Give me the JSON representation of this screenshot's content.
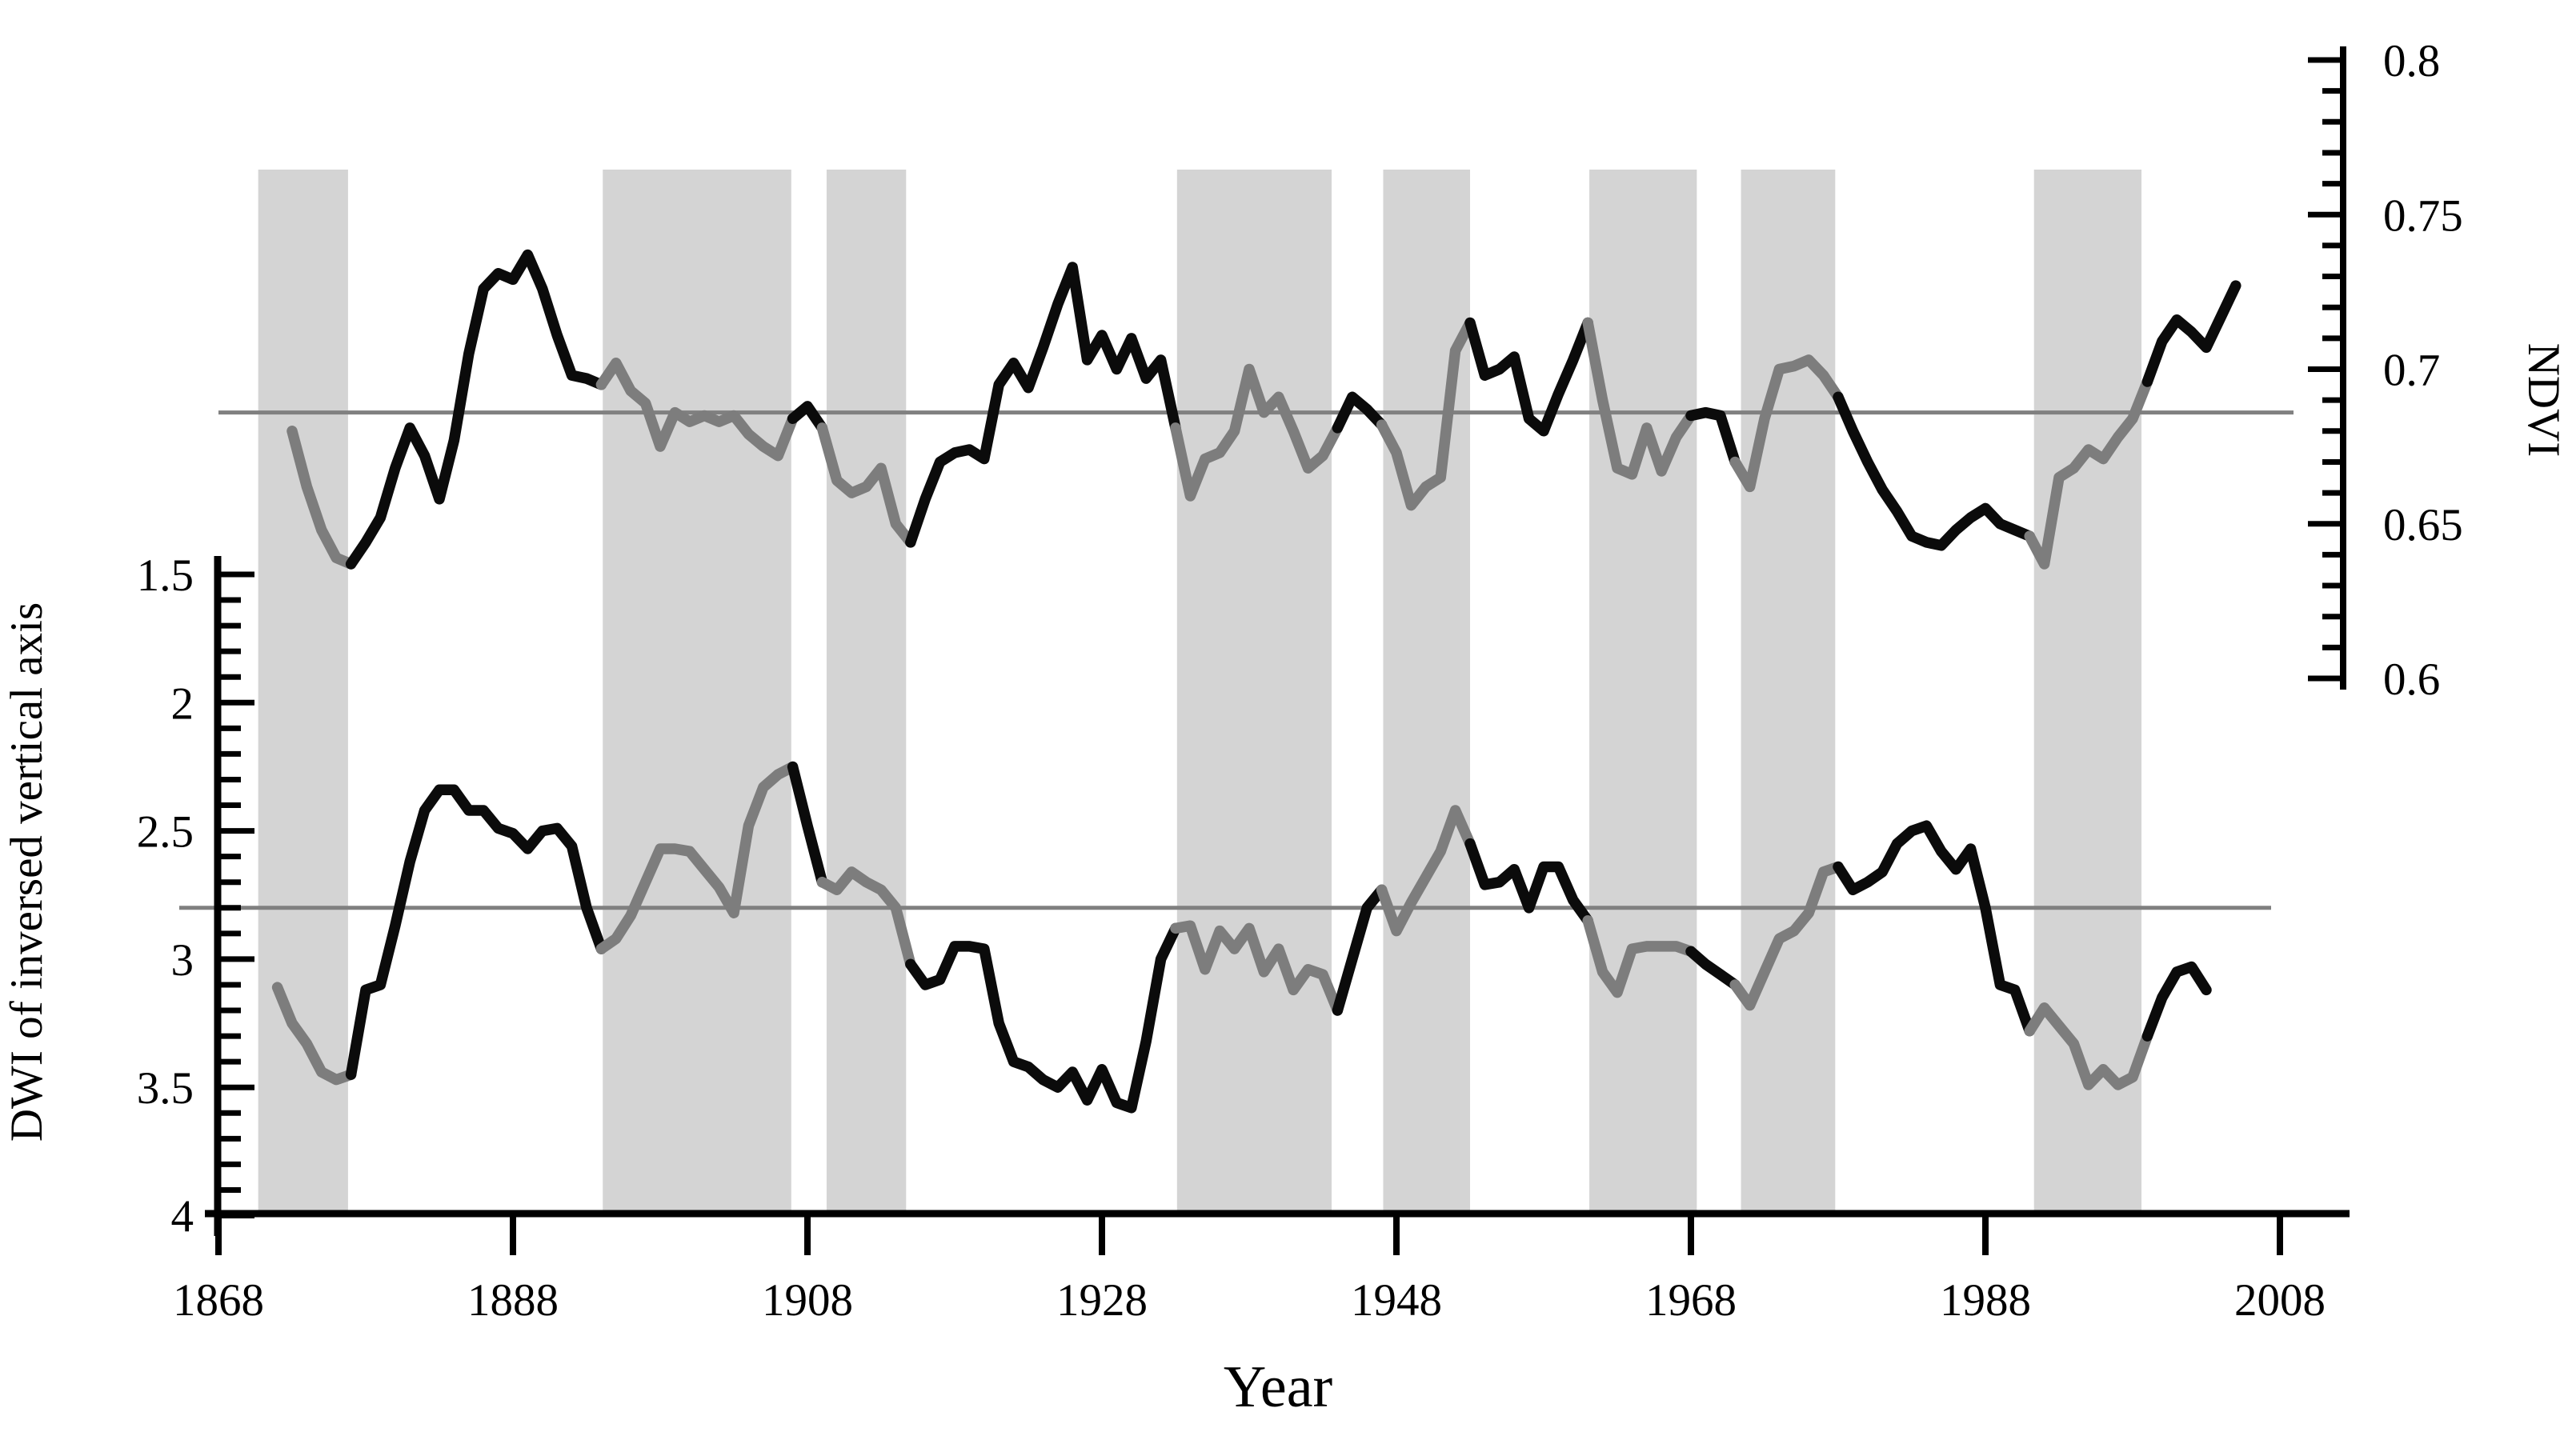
{
  "chart_data": {
    "type": "line",
    "title": "",
    "xlabel": "Year",
    "ylabel_left": "DWI of inversed vertical axis",
    "ylabel_right": "NDVI",
    "x_axis": {
      "range": [
        1868,
        2012.5
      ],
      "ticks": [
        1868,
        1888,
        1908,
        1928,
        1948,
        1968,
        1988,
        2008
      ],
      "tick_labels": [
        "1868",
        "1888",
        "1908",
        "1928",
        "1948",
        "1968",
        "1988",
        "2008"
      ]
    },
    "left_axis": {
      "label": "DWI of inversed vertical axis",
      "inverted": true,
      "range": [
        1.5,
        4
      ],
      "major_step": 0.5,
      "minor_step": 0.1,
      "major_ticks": [
        1.5,
        2,
        2.5,
        3,
        3.5,
        4
      ],
      "tick_labels": [
        "1.5",
        "2",
        "2.5",
        "3",
        "3.5",
        "4"
      ]
    },
    "right_axis": {
      "label": "NDVI",
      "range": [
        0.6,
        0.8
      ],
      "major_step": 0.05,
      "minor_step": 0.01,
      "major_ticks": [
        0.8,
        0.75,
        0.7,
        0.65,
        0.6
      ],
      "tick_labels": [
        "0.8",
        "0.75",
        "0.7",
        "0.65",
        "0.6"
      ]
    },
    "mean_lines": [
      {
        "series": "NDVI",
        "axis": "right",
        "value": 0.686
      },
      {
        "series": "DWI",
        "axis": "left",
        "value": 2.8
      }
    ],
    "shaded_bands": [
      {
        "start": 1870.7,
        "end": 1876.8
      },
      {
        "start": 1894.1,
        "end": 1906.9
      },
      {
        "start": 1909.3,
        "end": 1914.7
      },
      {
        "start": 1933.1,
        "end": 1943.6
      },
      {
        "start": 1947.1,
        "end": 1953.0
      },
      {
        "start": 1961.1,
        "end": 1968.4
      },
      {
        "start": 1971.4,
        "end": 1977.8
      },
      {
        "start": 1991.3,
        "end": 1998.6
      }
    ],
    "colors": {
      "line_normal": "#0b0b0b",
      "line_in_band": "#7d7d7d",
      "band_fill": "#d4d4d4",
      "mean_line": "#808080",
      "axis": "#000000"
    },
    "series": [
      {
        "name": "NDVI",
        "axis": "right",
        "points": [
          [
            1873,
            0.68
          ],
          [
            1874,
            0.662
          ],
          [
            1875,
            0.648
          ],
          [
            1876,
            0.639
          ],
          [
            1877,
            0.637
          ],
          [
            1878,
            0.644
          ],
          [
            1879,
            0.652
          ],
          [
            1880,
            0.668
          ],
          [
            1881,
            0.681
          ],
          [
            1882,
            0.672
          ],
          [
            1883,
            0.658
          ],
          [
            1884,
            0.677
          ],
          [
            1885,
            0.705
          ],
          [
            1886,
            0.726
          ],
          [
            1887,
            0.731
          ],
          [
            1888,
            0.729
          ],
          [
            1889,
            0.737
          ],
          [
            1890,
            0.726
          ],
          [
            1891,
            0.711
          ],
          [
            1892,
            0.698
          ],
          [
            1893,
            0.697
          ],
          [
            1894,
            0.695
          ],
          [
            1895,
            0.702
          ],
          [
            1896,
            0.693
          ],
          [
            1897,
            0.689
          ],
          [
            1898,
            0.675
          ],
          [
            1899,
            0.686
          ],
          [
            1900,
            0.683
          ],
          [
            1901,
            0.685
          ],
          [
            1902,
            0.683
          ],
          [
            1903,
            0.685
          ],
          [
            1904,
            0.679
          ],
          [
            1905,
            0.675
          ],
          [
            1906,
            0.672
          ],
          [
            1907,
            0.684
          ],
          [
            1908,
            0.688
          ],
          [
            1909,
            0.681
          ],
          [
            1910,
            0.664
          ],
          [
            1911,
            0.66
          ],
          [
            1912,
            0.662
          ],
          [
            1913,
            0.668
          ],
          [
            1914,
            0.65
          ],
          [
            1915,
            0.644
          ],
          [
            1916,
            0.658
          ],
          [
            1917,
            0.67
          ],
          [
            1918,
            0.673
          ],
          [
            1919,
            0.674
          ],
          [
            1920,
            0.671
          ],
          [
            1921,
            0.695
          ],
          [
            1922,
            0.702
          ],
          [
            1923,
            0.694
          ],
          [
            1924,
            0.707
          ],
          [
            1925,
            0.721
          ],
          [
            1926,
            0.733
          ],
          [
            1927,
            0.703
          ],
          [
            1928,
            0.711
          ],
          [
            1929,
            0.7
          ],
          [
            1930,
            0.71
          ],
          [
            1931,
            0.697
          ],
          [
            1932,
            0.703
          ],
          [
            1933,
            0.681
          ],
          [
            1934,
            0.659
          ],
          [
            1935,
            0.671
          ],
          [
            1936,
            0.673
          ],
          [
            1937,
            0.68
          ],
          [
            1938,
            0.7
          ],
          [
            1939,
            0.686
          ],
          [
            1940,
            0.691
          ],
          [
            1941,
            0.68
          ],
          [
            1942,
            0.668
          ],
          [
            1943,
            0.672
          ],
          [
            1944,
            0.681
          ],
          [
            1945,
            0.691
          ],
          [
            1946,
            0.687
          ],
          [
            1947,
            0.682
          ],
          [
            1948,
            0.673
          ],
          [
            1949,
            0.656
          ],
          [
            1950,
            0.662
          ],
          [
            1951,
            0.665
          ],
          [
            1952,
            0.706
          ],
          [
            1953,
            0.715
          ],
          [
            1954,
            0.698
          ],
          [
            1955,
            0.7
          ],
          [
            1956,
            0.704
          ],
          [
            1957,
            0.684
          ],
          [
            1958,
            0.68
          ],
          [
            1959,
            0.692
          ],
          [
            1960,
            0.703
          ],
          [
            1961,
            0.715
          ],
          [
            1962,
            0.69
          ],
          [
            1963,
            0.668
          ],
          [
            1964,
            0.666
          ],
          [
            1965,
            0.681
          ],
          [
            1966,
            0.667
          ],
          [
            1967,
            0.678
          ],
          [
            1968,
            0.685
          ],
          [
            1969,
            0.686
          ],
          [
            1970,
            0.685
          ],
          [
            1971,
            0.67
          ],
          [
            1972,
            0.662
          ],
          [
            1973,
            0.684
          ],
          [
            1974,
            0.7
          ],
          [
            1975,
            0.701
          ],
          [
            1976,
            0.703
          ],
          [
            1977,
            0.698
          ],
          [
            1978,
            0.691
          ],
          [
            1979,
            0.68
          ],
          [
            1980,
            0.67
          ],
          [
            1981,
            0.661
          ],
          [
            1982,
            0.654
          ],
          [
            1983,
            0.646
          ],
          [
            1984,
            0.644
          ],
          [
            1985,
            0.643
          ],
          [
            1986,
            0.648
          ],
          [
            1987,
            0.652
          ],
          [
            1988,
            0.655
          ],
          [
            1989,
            0.65
          ],
          [
            1990,
            0.648
          ],
          [
            1991,
            0.646
          ],
          [
            1992,
            0.637
          ],
          [
            1993,
            0.665
          ],
          [
            1994,
            0.668
          ],
          [
            1995,
            0.674
          ],
          [
            1996,
            0.671
          ],
          [
            1997,
            0.678
          ],
          [
            1998,
            0.684
          ],
          [
            1999,
            0.696
          ],
          [
            2000,
            0.709
          ],
          [
            2001,
            0.716
          ],
          [
            2002,
            0.712
          ],
          [
            2003,
            0.707
          ],
          [
            2004,
            0.717
          ],
          [
            2005,
            0.727
          ]
        ]
      },
      {
        "name": "DWI",
        "axis": "left",
        "points": [
          [
            1872,
            3.11
          ],
          [
            1873,
            3.25
          ],
          [
            1874,
            3.33
          ],
          [
            1875,
            3.44
          ],
          [
            1876,
            3.47
          ],
          [
            1877,
            3.45
          ],
          [
            1878,
            3.12
          ],
          [
            1879,
            3.1
          ],
          [
            1880,
            2.87
          ],
          [
            1881,
            2.62
          ],
          [
            1882,
            2.42
          ],
          [
            1883,
            2.34
          ],
          [
            1884,
            2.34
          ],
          [
            1885,
            2.42
          ],
          [
            1886,
            2.42
          ],
          [
            1887,
            2.49
          ],
          [
            1888,
            2.51
          ],
          [
            1889,
            2.57
          ],
          [
            1890,
            2.5
          ],
          [
            1891,
            2.49
          ],
          [
            1892,
            2.56
          ],
          [
            1893,
            2.8
          ],
          [
            1894,
            2.96
          ],
          [
            1895,
            2.92
          ],
          [
            1896,
            2.83
          ],
          [
            1897,
            2.7
          ],
          [
            1898,
            2.57
          ],
          [
            1899,
            2.57
          ],
          [
            1900,
            2.58
          ],
          [
            1901,
            2.65
          ],
          [
            1902,
            2.72
          ],
          [
            1903,
            2.82
          ],
          [
            1904,
            2.48
          ],
          [
            1905,
            2.33
          ],
          [
            1906,
            2.28
          ],
          [
            1907,
            2.25
          ],
          [
            1908,
            2.48
          ],
          [
            1909,
            2.7
          ],
          [
            1910,
            2.73
          ],
          [
            1911,
            2.66
          ],
          [
            1912,
            2.7
          ],
          [
            1913,
            2.73
          ],
          [
            1914,
            2.8
          ],
          [
            1915,
            3.02
          ],
          [
            1916,
            3.1
          ],
          [
            1917,
            3.08
          ],
          [
            1918,
            2.95
          ],
          [
            1919,
            2.95
          ],
          [
            1920,
            2.96
          ],
          [
            1921,
            3.25
          ],
          [
            1922,
            3.4
          ],
          [
            1923,
            3.42
          ],
          [
            1924,
            3.47
          ],
          [
            1925,
            3.5
          ],
          [
            1926,
            3.44
          ],
          [
            1927,
            3.55
          ],
          [
            1928,
            3.43
          ],
          [
            1929,
            3.56
          ],
          [
            1930,
            3.58
          ],
          [
            1931,
            3.32
          ],
          [
            1932,
            3.0
          ],
          [
            1933,
            2.88
          ],
          [
            1934,
            2.87
          ],
          [
            1935,
            3.04
          ],
          [
            1936,
            2.89
          ],
          [
            1937,
            2.96
          ],
          [
            1938,
            2.88
          ],
          [
            1939,
            3.05
          ],
          [
            1940,
            2.96
          ],
          [
            1941,
            3.12
          ],
          [
            1942,
            3.04
          ],
          [
            1943,
            3.06
          ],
          [
            1944,
            3.2
          ],
          [
            1945,
            3.0
          ],
          [
            1946,
            2.8
          ],
          [
            1947,
            2.73
          ],
          [
            1948,
            2.89
          ],
          [
            1949,
            2.78
          ],
          [
            1950,
            2.68
          ],
          [
            1951,
            2.58
          ],
          [
            1952,
            2.42
          ],
          [
            1953,
            2.55
          ],
          [
            1954,
            2.71
          ],
          [
            1955,
            2.7
          ],
          [
            1956,
            2.65
          ],
          [
            1957,
            2.8
          ],
          [
            1958,
            2.64
          ],
          [
            1959,
            2.64
          ],
          [
            1960,
            2.77
          ],
          [
            1961,
            2.85
          ],
          [
            1962,
            3.05
          ],
          [
            1963,
            3.13
          ],
          [
            1964,
            2.96
          ],
          [
            1965,
            2.95
          ],
          [
            1966,
            2.95
          ],
          [
            1967,
            2.95
          ],
          [
            1968,
            2.97
          ],
          [
            1969,
            3.02
          ],
          [
            1970,
            3.06
          ],
          [
            1971,
            3.1
          ],
          [
            1972,
            3.18
          ],
          [
            1973,
            3.05
          ],
          [
            1974,
            2.92
          ],
          [
            1975,
            2.89
          ],
          [
            1976,
            2.82
          ],
          [
            1977,
            2.66
          ],
          [
            1978,
            2.64
          ],
          [
            1979,
            2.73
          ],
          [
            1980,
            2.7
          ],
          [
            1981,
            2.66
          ],
          [
            1982,
            2.55
          ],
          [
            1983,
            2.5
          ],
          [
            1984,
            2.48
          ],
          [
            1985,
            2.58
          ],
          [
            1986,
            2.65
          ],
          [
            1987,
            2.57
          ],
          [
            1988,
            2.8
          ],
          [
            1989,
            3.1
          ],
          [
            1990,
            3.12
          ],
          [
            1991,
            3.28
          ],
          [
            1992,
            3.19
          ],
          [
            1993,
            3.26
          ],
          [
            1994,
            3.33
          ],
          [
            1995,
            3.49
          ],
          [
            1996,
            3.43
          ],
          [
            1997,
            3.49
          ],
          [
            1998,
            3.46
          ],
          [
            1999,
            3.3
          ],
          [
            2000,
            3.15
          ],
          [
            2001,
            3.05
          ],
          [
            2002,
            3.03
          ],
          [
            2003,
            3.12
          ]
        ]
      }
    ]
  }
}
